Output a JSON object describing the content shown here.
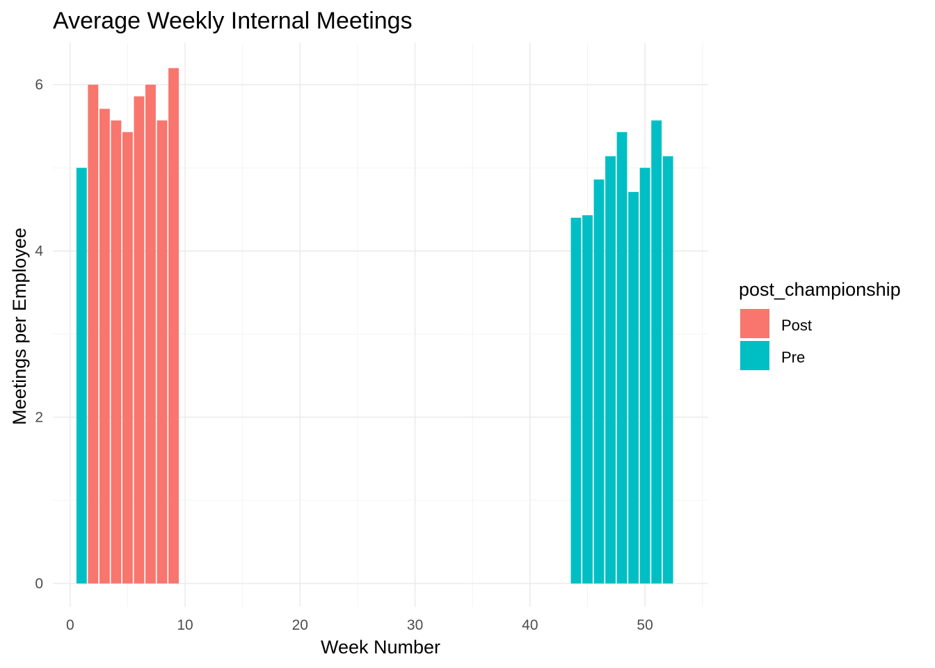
{
  "chart_data": {
    "type": "bar",
    "title": "Average Weekly Internal Meetings",
    "xlabel": "Week Number",
    "ylabel": "Meetings per Employee",
    "xlim": [
      -1.5,
      55.5
    ],
    "ylim": [
      -0.28,
      6.5
    ],
    "x_ticks": [
      0,
      10,
      20,
      30,
      40,
      50
    ],
    "y_ticks": [
      0,
      2,
      4,
      6
    ],
    "grid": true,
    "legend": {
      "title": "post_championship",
      "position": "right",
      "entries": [
        {
          "name": "Post",
          "color": "#F8766D"
        },
        {
          "name": "Pre",
          "color": "#00BFC4"
        }
      ]
    },
    "series": [
      {
        "name": "Post",
        "color": "#F8766D",
        "x": [
          2,
          3,
          4,
          5,
          6,
          7,
          8,
          9
        ],
        "values": [
          6.0,
          5.71,
          5.57,
          5.43,
          5.86,
          6.0,
          5.57,
          6.2
        ]
      },
      {
        "name": "Pre",
        "color": "#00BFC4",
        "x": [
          1,
          44,
          45,
          46,
          47,
          48,
          49,
          50,
          51,
          52
        ],
        "values": [
          5.0,
          4.4,
          4.43,
          4.86,
          5.14,
          5.43,
          4.71,
          5.0,
          5.57,
          5.14
        ]
      }
    ]
  }
}
